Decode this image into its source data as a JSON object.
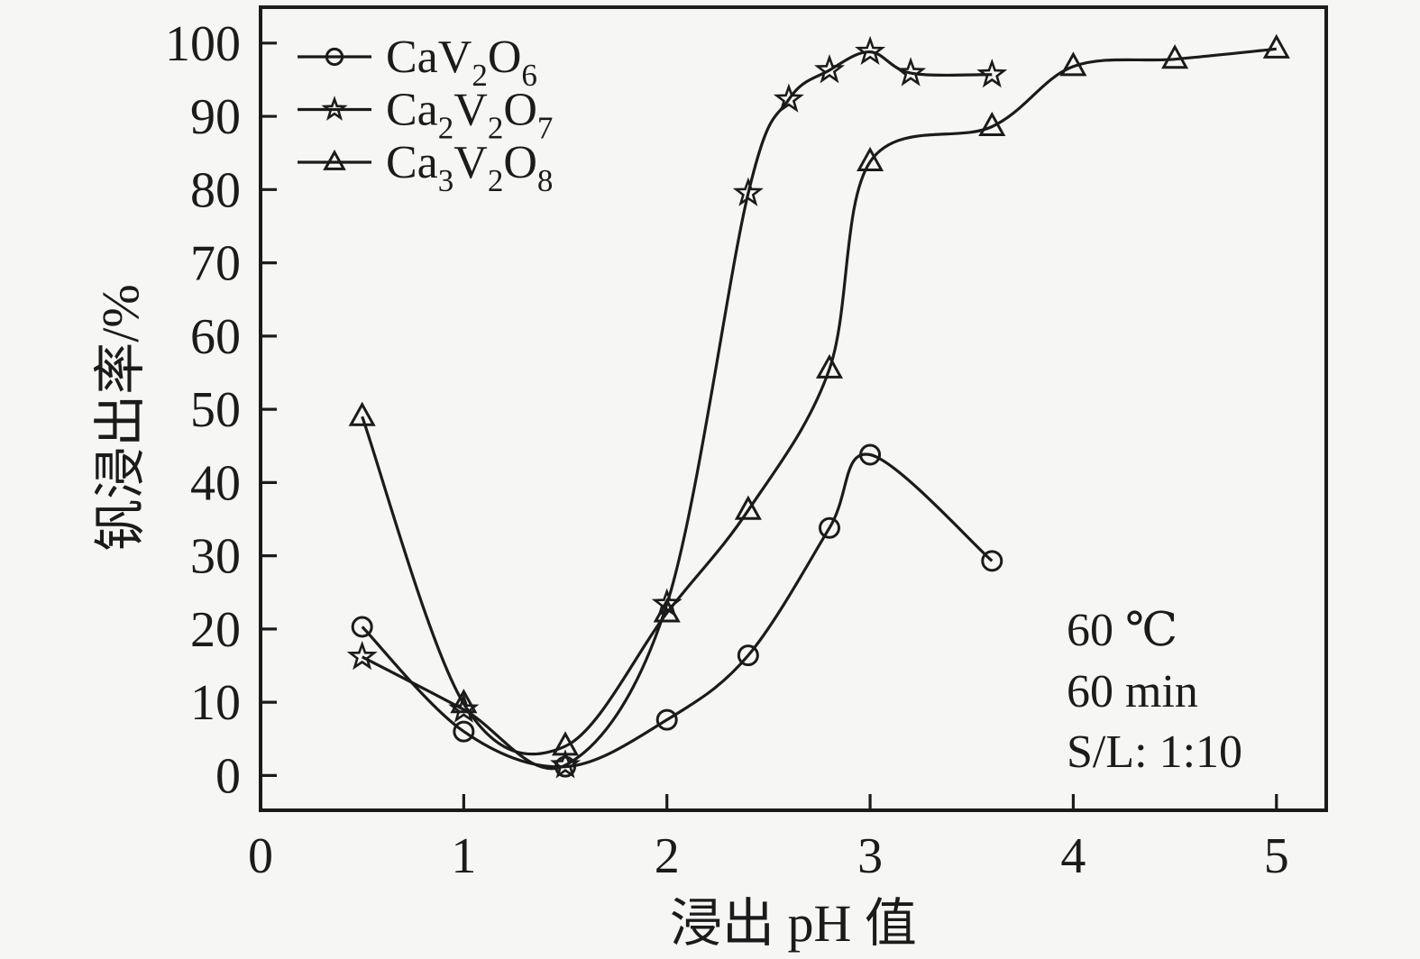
{
  "background": "#f6f6f4",
  "ink": "#1b1b1b",
  "chart_data": {
    "type": "line",
    "title": "",
    "xlabel": "浸出 pH 值",
    "ylabel": "钒浸出率/%",
    "xlim": [
      0,
      5.245
    ],
    "ylim": [
      -4.75,
      104.9
    ],
    "xticks": [
      "0",
      "1",
      "2",
      "3",
      "4",
      "5"
    ],
    "yticks": [
      "0",
      "10",
      "20",
      "30",
      "40",
      "50",
      "60",
      "70",
      "80",
      "90",
      "100"
    ],
    "grid": false,
    "legend_position": "inside-top-left",
    "annotation_lines": [
      "60 ℃",
      "60 min",
      "S/L: 1:10"
    ],
    "series": [
      {
        "name": "CaV2O6",
        "marker": "circle",
        "color": "#1b1b1b",
        "label_parts": [
          {
            "t": "CaV"
          },
          {
            "t": "2",
            "sub": true
          },
          {
            "t": "O"
          },
          {
            "t": "6",
            "sub": true
          }
        ],
        "points": [
          [
            0.5,
            20.3
          ],
          [
            1.0,
            6.0
          ],
          [
            1.5,
            1.2
          ],
          [
            2.0,
            7.6
          ],
          [
            2.4,
            16.4
          ],
          [
            2.8,
            33.8
          ],
          [
            3.0,
            43.8
          ],
          [
            3.6,
            29.3
          ]
        ]
      },
      {
        "name": "Ca2V2O7",
        "marker": "star",
        "color": "#1b1b1b",
        "label_parts": [
          {
            "t": "Ca"
          },
          {
            "t": "2",
            "sub": true
          },
          {
            "t": "V"
          },
          {
            "t": "2",
            "sub": true
          },
          {
            "t": "O"
          },
          {
            "t": "7",
            "sub": true
          }
        ],
        "points": [
          [
            0.5,
            16.2
          ],
          [
            1.0,
            9.0
          ],
          [
            1.5,
            1.4
          ],
          [
            2.0,
            23.4
          ],
          [
            2.4,
            79.5
          ],
          [
            2.6,
            92.3
          ],
          [
            2.8,
            96.3
          ],
          [
            3.0,
            98.8
          ],
          [
            3.2,
            95.9
          ],
          [
            3.6,
            95.7
          ]
        ]
      },
      {
        "name": "Ca3V2O8",
        "marker": "triangle",
        "color": "#1b1b1b",
        "label_parts": [
          {
            "t": "Ca"
          },
          {
            "t": "3",
            "sub": true
          },
          {
            "t": "V"
          },
          {
            "t": "2",
            "sub": true
          },
          {
            "t": "O"
          },
          {
            "t": "8",
            "sub": true
          }
        ],
        "points": [
          [
            0.5,
            49.0
          ],
          [
            1.0,
            9.8
          ],
          [
            1.5,
            4.0
          ],
          [
            2.0,
            22.2
          ],
          [
            2.4,
            36.2
          ],
          [
            2.8,
            55.5
          ],
          [
            3.0,
            83.8
          ],
          [
            3.6,
            88.6
          ],
          [
            4.0,
            96.8
          ],
          [
            4.5,
            97.8
          ],
          [
            5.0,
            99.2
          ]
        ]
      }
    ]
  }
}
